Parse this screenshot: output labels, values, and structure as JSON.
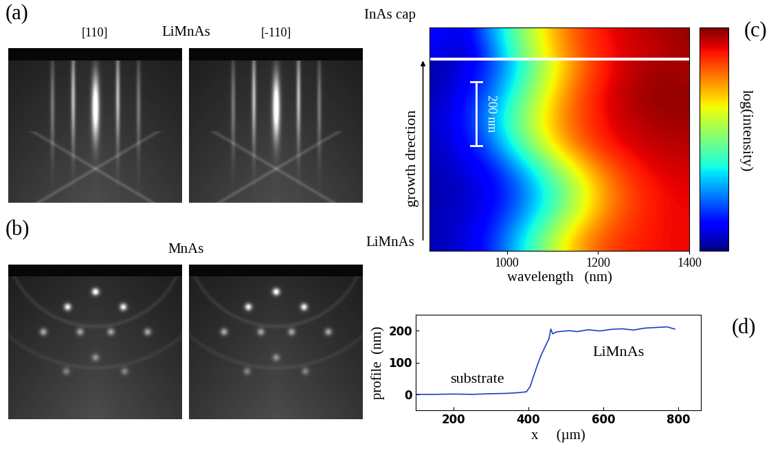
{
  "chart_data": [
    {
      "type": "image",
      "panel": "(a)",
      "title": "LiMnAs",
      "subtitles": [
        "[110]",
        "[-110]"
      ]
    },
    {
      "type": "image",
      "panel": "(b)",
      "title": "MnAs"
    },
    {
      "type": "heatmap",
      "panel": "(c)",
      "x": [
        850,
        905,
        960,
        1015,
        1070,
        1125,
        1180,
        1235,
        1290,
        1345,
        1400
      ],
      "cells": [
        [
          0.05,
          0.08,
          0.15,
          0.3,
          0.47,
          0.65,
          0.78,
          0.85,
          0.88,
          0.9,
          0.9
        ],
        [
          0.05,
          0.07,
          0.12,
          0.22,
          0.36,
          0.52,
          0.68,
          0.8,
          0.86,
          0.9,
          0.9
        ],
        [
          0.04,
          0.06,
          0.1,
          0.18,
          0.32,
          0.47,
          0.64,
          0.78,
          0.86,
          0.9,
          0.91
        ],
        [
          0.05,
          0.08,
          0.13,
          0.25,
          0.41,
          0.58,
          0.73,
          0.83,
          0.89,
          0.92,
          0.93
        ],
        [
          0.06,
          0.12,
          0.22,
          0.4,
          0.58,
          0.74,
          0.84,
          0.9,
          0.93,
          0.95,
          0.95
        ],
        [
          0.07,
          0.14,
          0.27,
          0.46,
          0.63,
          0.77,
          0.86,
          0.92,
          0.95,
          0.97,
          0.97
        ],
        [
          0.05,
          0.12,
          0.22,
          0.4,
          0.58,
          0.75,
          0.86,
          0.93,
          0.97,
          0.99,
          0.98
        ],
        [
          0.04,
          0.09,
          0.17,
          0.33,
          0.52,
          0.7,
          0.83,
          0.91,
          0.95,
          0.97,
          0.96
        ]
      ],
      "cap_cells": [
        [
          0.1,
          0.05,
          0.2,
          0.42,
          0.6,
          0.75,
          0.85,
          0.9,
          0.93,
          0.95,
          0.97
        ],
        [
          0.12,
          0.08,
          0.25,
          0.45,
          0.63,
          0.77,
          0.86,
          0.91,
          0.94,
          0.96,
          0.98
        ]
      ],
      "cell_range": [
        0,
        1
      ],
      "boundary": 600,
      "xlim": [
        830,
        1400
      ],
      "xticks": [
        1000,
        1200,
        1400
      ],
      "ylim": [
        0,
        700
      ],
      "tick_labels": "x",
      "xlabel": "wavelength   (nm)",
      "ylabel": "growth drection",
      "colorbar_label": "log(intensity)",
      "annotations": {
        "top": "InAs cap",
        "bottom": "LiMnAs"
      },
      "scale_bar": {
        "label": "200 nm",
        "length": 200
      }
    },
    {
      "type": "line",
      "panel": "(d)",
      "x": [
        100,
        150,
        200,
        250,
        300,
        340,
        370,
        395,
        405,
        415,
        425,
        435,
        445,
        455,
        460,
        465,
        475,
        490,
        510,
        530,
        560,
        590,
        620,
        650,
        680,
        710,
        740,
        770,
        790
      ],
      "values": [
        0,
        0,
        1,
        0,
        2,
        3,
        5,
        8,
        25,
        60,
        95,
        125,
        150,
        175,
        205,
        190,
        196,
        198,
        200,
        197,
        203,
        199,
        204,
        206,
        202,
        208,
        210,
        212,
        205
      ],
      "color": "#1c3fbf",
      "xlim": [
        100,
        860
      ],
      "xticks": [
        200,
        400,
        600,
        800
      ],
      "ylim": [
        -50,
        250
      ],
      "yticks": [
        0,
        100,
        200
      ],
      "xlabel": "x     (µm)",
      "ylabel": "profile  (nm)",
      "annotations": [
        "substrate",
        "LiMnAs"
      ]
    }
  ]
}
